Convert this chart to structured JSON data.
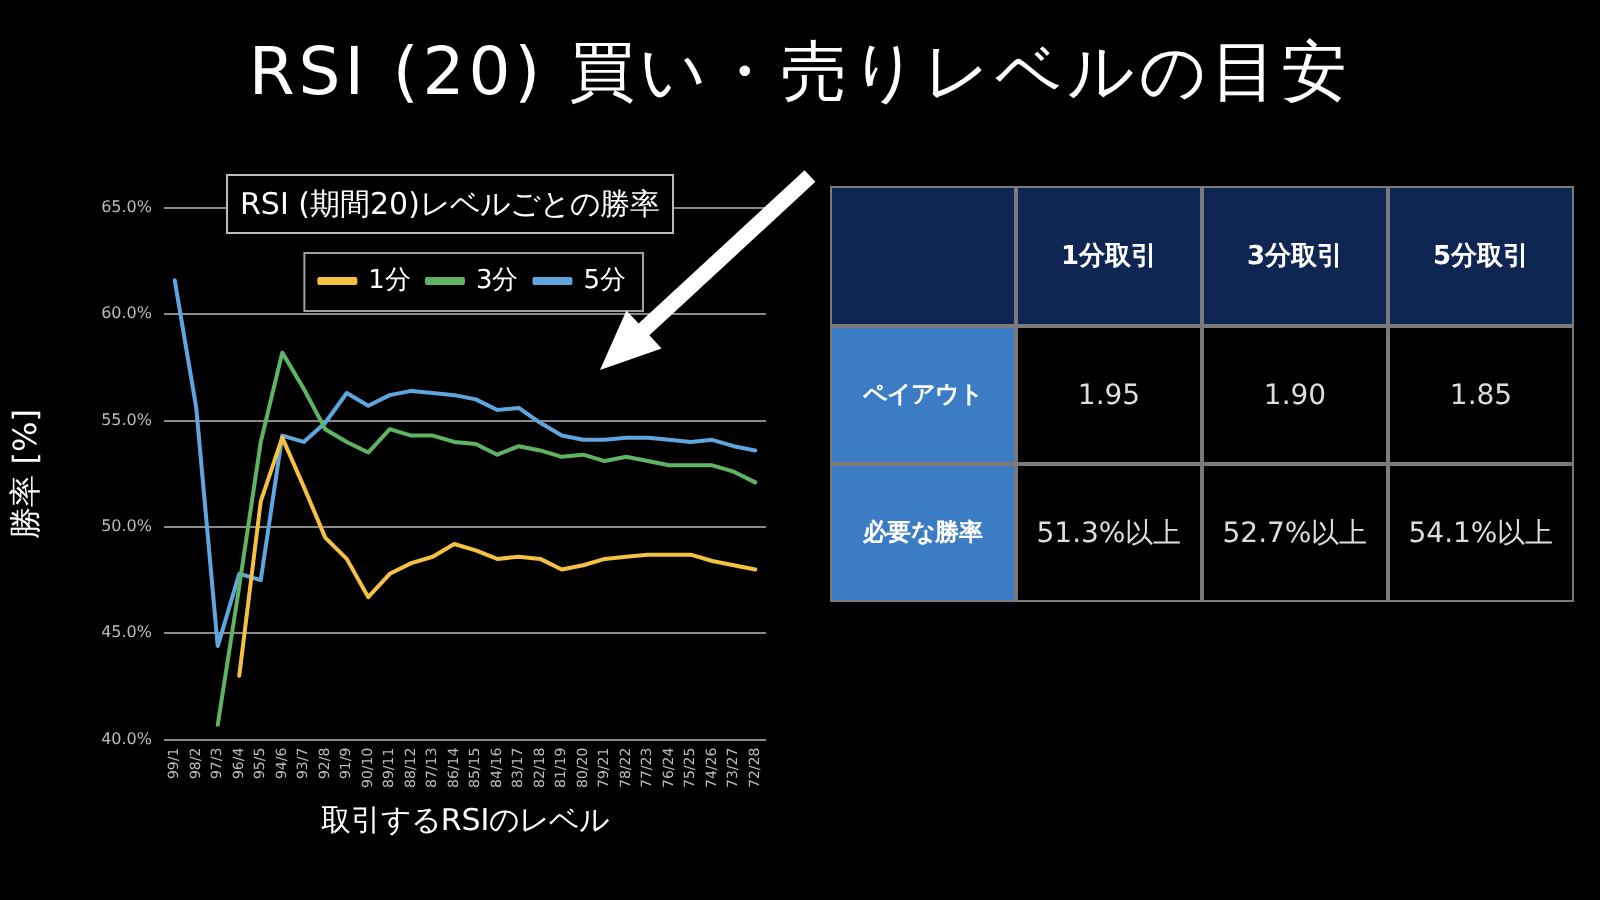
{
  "chart_data": [
    {
      "type": "line",
      "title": "RSI (20) 買い・売りレベルの目安",
      "subtitle": "RSI (期間20)レベルごとの勝率",
      "xlabel": "取引するRSIのレベル",
      "ylabel": "勝率 [%]",
      "categories": [
        "99/1",
        "98/2",
        "97/3",
        "96/4",
        "95/5",
        "94/6",
        "93/7",
        "92/8",
        "91/9",
        "90/10",
        "89/11",
        "88/12",
        "87/13",
        "86/14",
        "85/15",
        "84/16",
        "83/17",
        "82/18",
        "81/19",
        "80/20",
        "79/21",
        "78/22",
        "77/23",
        "76/24",
        "75/25",
        "74/26",
        "73/27",
        "72/28"
      ],
      "series": [
        {
          "name": "1分",
          "color": "#f5c142",
          "values": [
            null,
            null,
            null,
            43.0,
            51.2,
            54.2,
            51.9,
            49.5,
            48.5,
            46.7,
            47.8,
            48.3,
            48.6,
            49.2,
            48.9,
            48.5,
            48.6,
            48.5,
            48.0,
            48.2,
            48.5,
            48.6,
            48.7,
            48.7,
            48.7,
            48.4,
            48.2,
            48.0
          ]
        },
        {
          "name": "3分",
          "color": "#5fb463",
          "values": [
            null,
            null,
            40.7,
            47.2,
            54.0,
            58.2,
            56.5,
            54.6,
            54.0,
            53.5,
            54.6,
            54.3,
            54.3,
            54.0,
            53.9,
            53.4,
            53.8,
            53.6,
            53.3,
            53.4,
            53.1,
            53.3,
            53.1,
            52.9,
            52.9,
            52.9,
            52.6,
            52.1
          ]
        },
        {
          "name": "5分",
          "color": "#5fa6df",
          "values": [
            61.6,
            55.6,
            44.4,
            47.8,
            47.5,
            54.3,
            54.0,
            54.9,
            56.3,
            55.7,
            56.2,
            56.4,
            56.3,
            56.2,
            56.0,
            55.5,
            55.6,
            54.9,
            54.3,
            54.1,
            54.1,
            54.2,
            54.2,
            54.1,
            54.0,
            54.1,
            53.8,
            53.6
          ]
        }
      ],
      "ylim": [
        40,
        65
      ],
      "yticks": [
        {
          "value": 40,
          "label": "40.0%"
        },
        {
          "value": 45,
          "label": "45.0%"
        },
        {
          "value": 50,
          "label": "50.0%"
        },
        {
          "value": 55,
          "label": "55.0%"
        },
        {
          "value": 60,
          "label": "60.0%"
        },
        {
          "value": 65,
          "label": "65.0%"
        }
      ],
      "grid": "y",
      "legend": "top right"
    },
    {
      "type": "other",
      "categories": [
        "1分取引",
        "3分取引",
        "5分取引"
      ],
      "y_categories": [
        "ペイアウト",
        "必要な勝率"
      ],
      "cell_labels": [
        [
          "1.95",
          "1.90",
          "1.85"
        ],
        [
          "51.3%以上",
          "52.7%以上",
          "54.1%以上"
        ]
      ]
    }
  ]
}
